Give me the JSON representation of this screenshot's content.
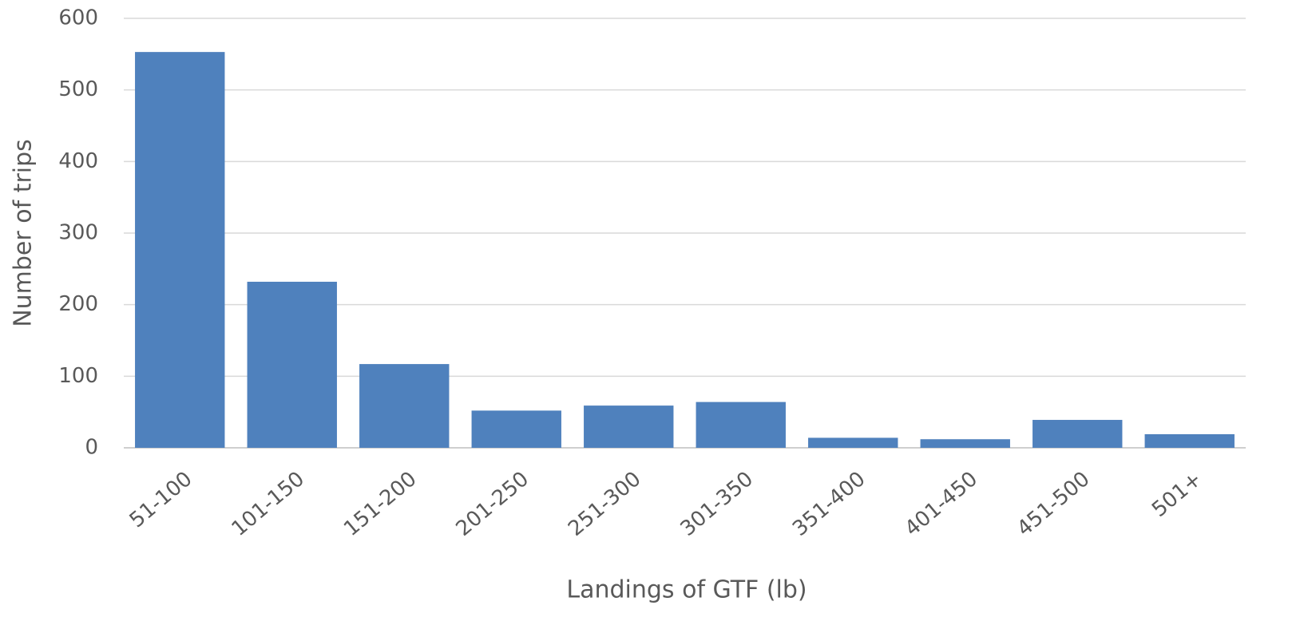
{
  "chart_data": {
    "type": "bar",
    "x_label": "Landings of GTF (lb)",
    "y_label": "Number of trips",
    "categories": [
      "51-100",
      "101-150",
      "151-200",
      "201-250",
      "251-300",
      "301-350",
      "351-400",
      "401-450",
      "451-500",
      "501+"
    ],
    "values": [
      553,
      232,
      117,
      52,
      59,
      64,
      14,
      12,
      39,
      19
    ],
    "color": "#4f81bd",
    "ylim": [
      0,
      600
    ],
    "yticks": [
      0,
      100,
      200,
      300,
      400,
      500,
      600
    ],
    "grid": true
  }
}
